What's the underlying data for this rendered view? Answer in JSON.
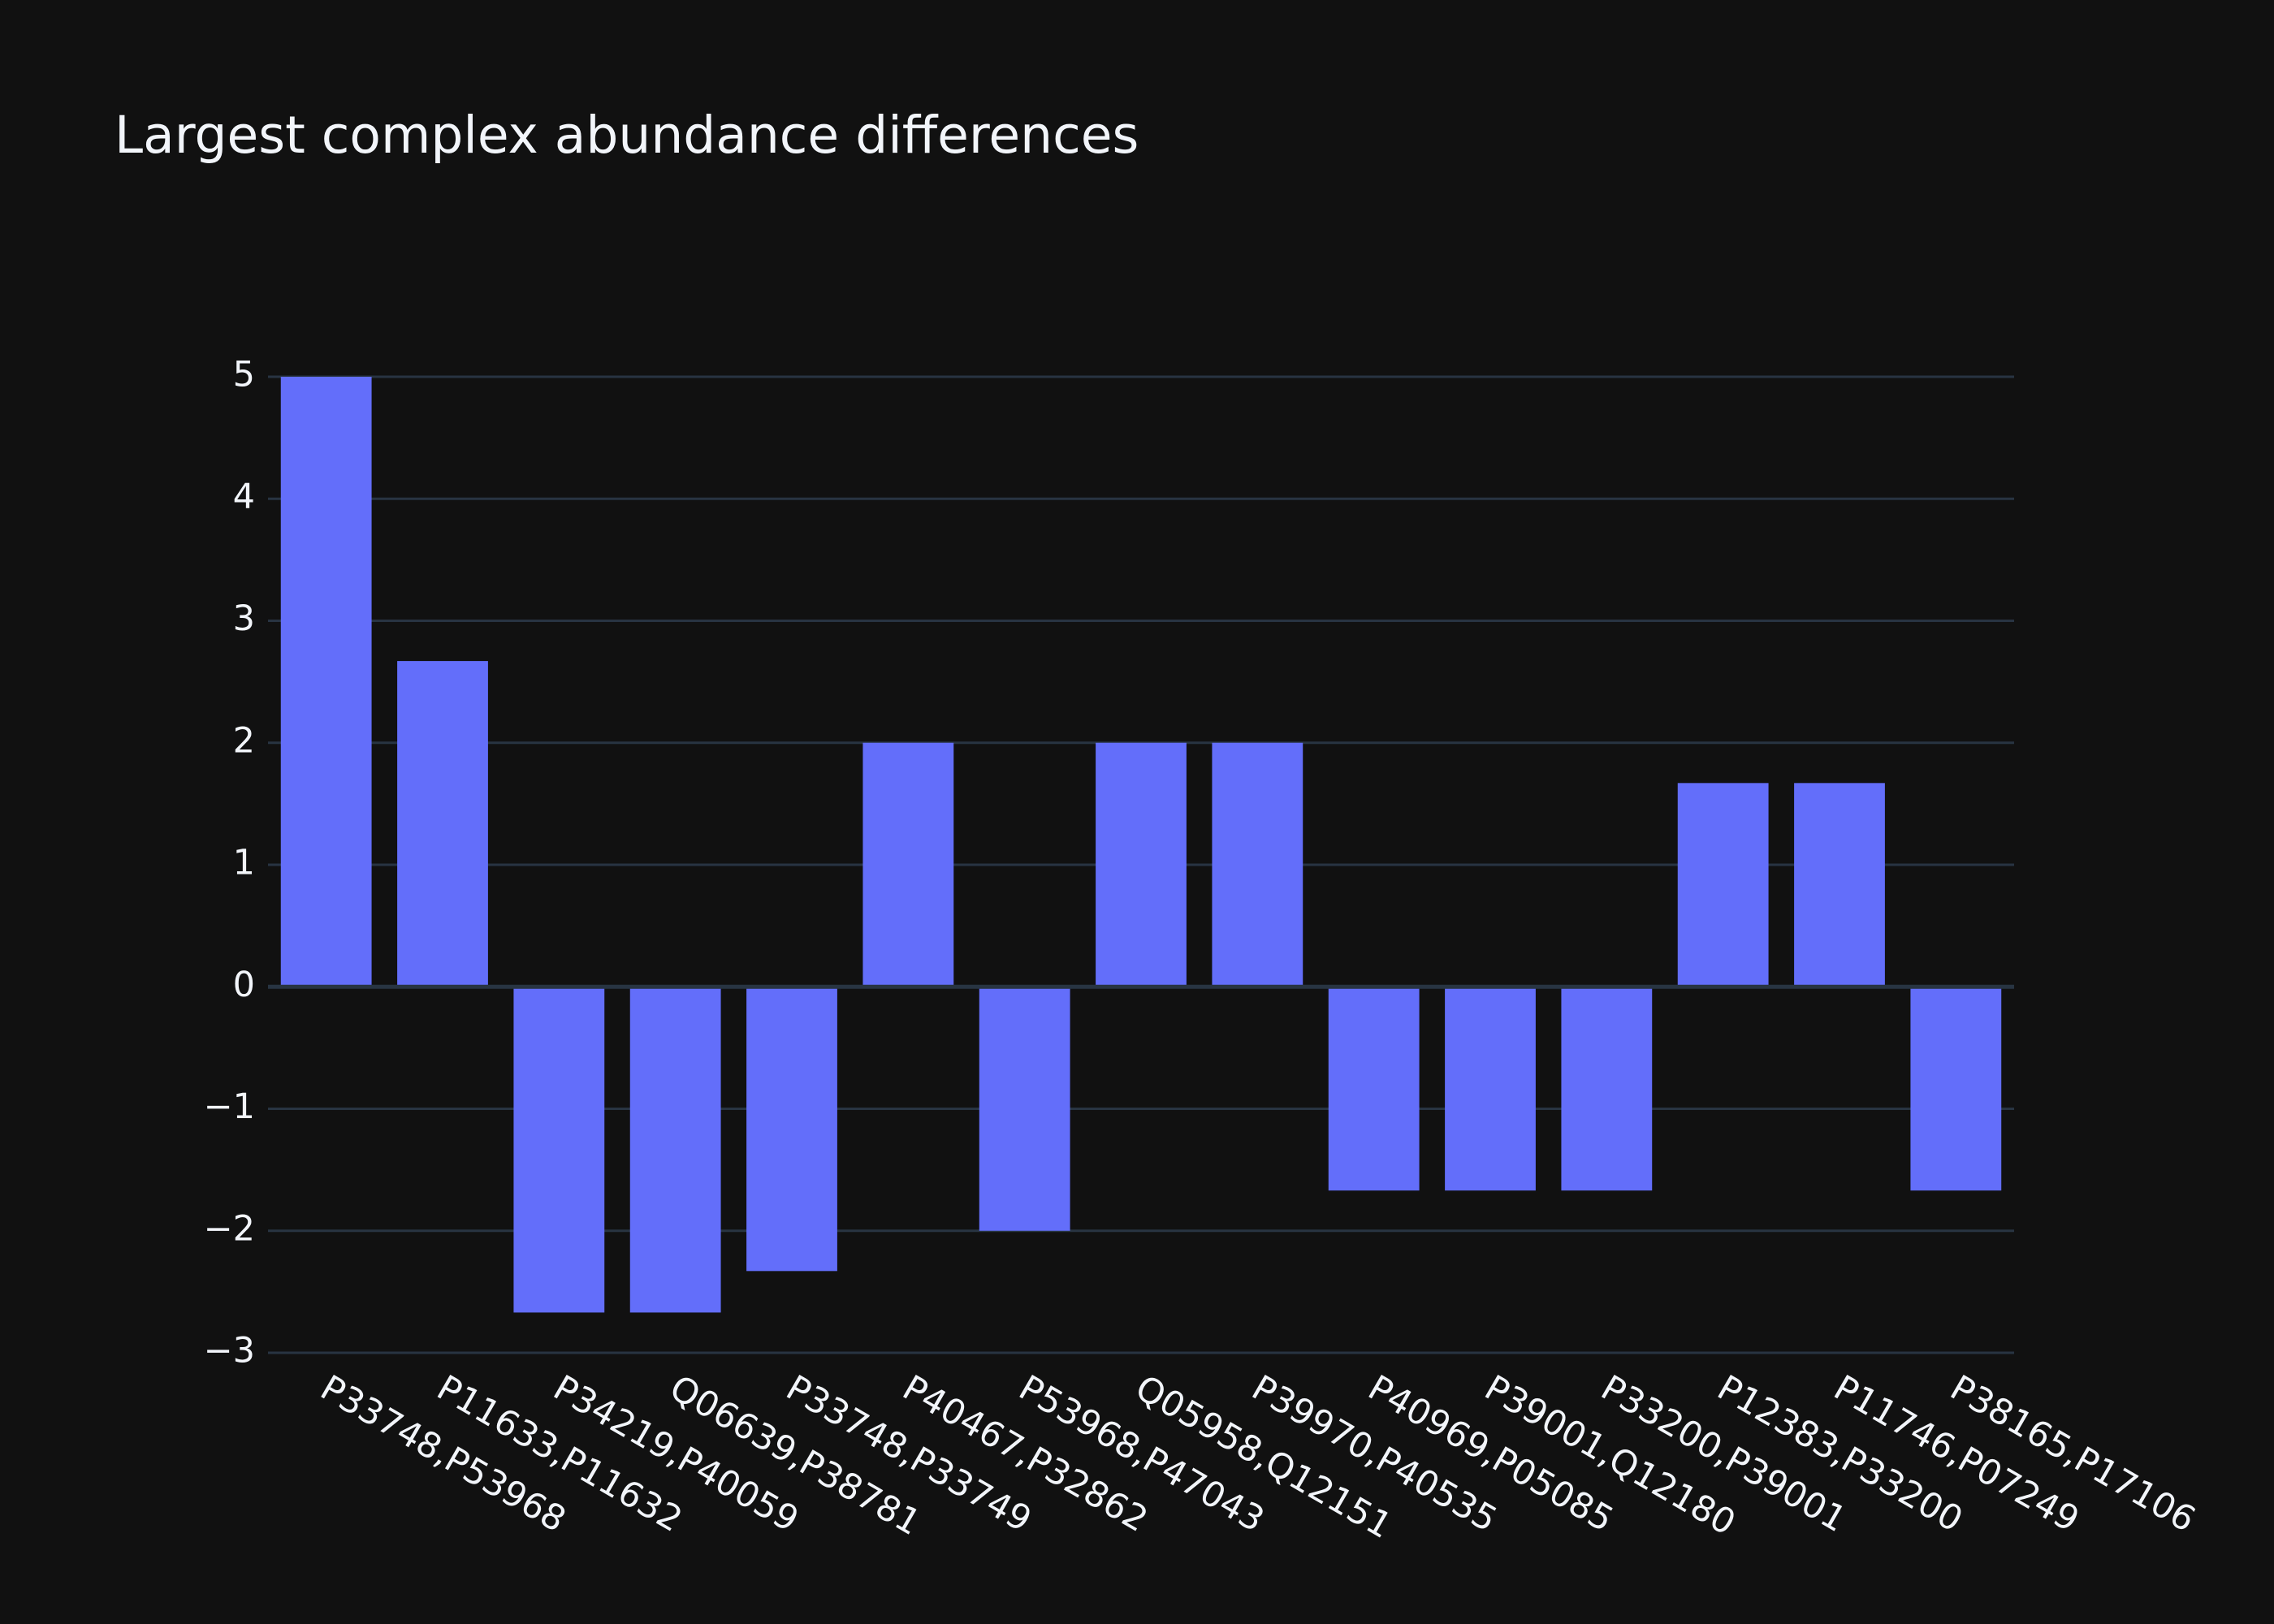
{
  "chart_data": {
    "type": "bar",
    "title": "Largest complex abundance differences",
    "xlabel": "",
    "ylabel": "",
    "ylim": [
      -3,
      5
    ],
    "yticks": [
      5,
      4,
      3,
      2,
      1,
      0,
      -1,
      -2,
      -3
    ],
    "ytick_labels": [
      "5",
      "4",
      "3",
      "2",
      "1",
      "0",
      "−1",
      "−2",
      "−3"
    ],
    "grid": true,
    "categories": [
      "P33748,P53968",
      "P11633,P11632",
      "P34219,P40059",
      "Q06639,P38781",
      "P33748,P33749",
      "P40467,P32862",
      "P53968,P47043",
      "Q05958,Q12151",
      "P39970,P40535",
      "P40969,P05085",
      "P39001,Q12180",
      "P33200,P39001",
      "P12383,P33200",
      "P11746,P07249",
      "P38165,P17106"
    ],
    "values": [
      5.0,
      2.67,
      -2.67,
      -2.67,
      -2.33,
      2.0,
      -2.0,
      2.0,
      2.0,
      -1.67,
      -1.67,
      -1.67,
      1.67,
      1.67,
      -1.67
    ]
  },
  "colors": {
    "background": "#111111",
    "bar": "#636efa",
    "grid": "#283442",
    "zeroline": "#283442",
    "text": "#f2f5fa"
  }
}
